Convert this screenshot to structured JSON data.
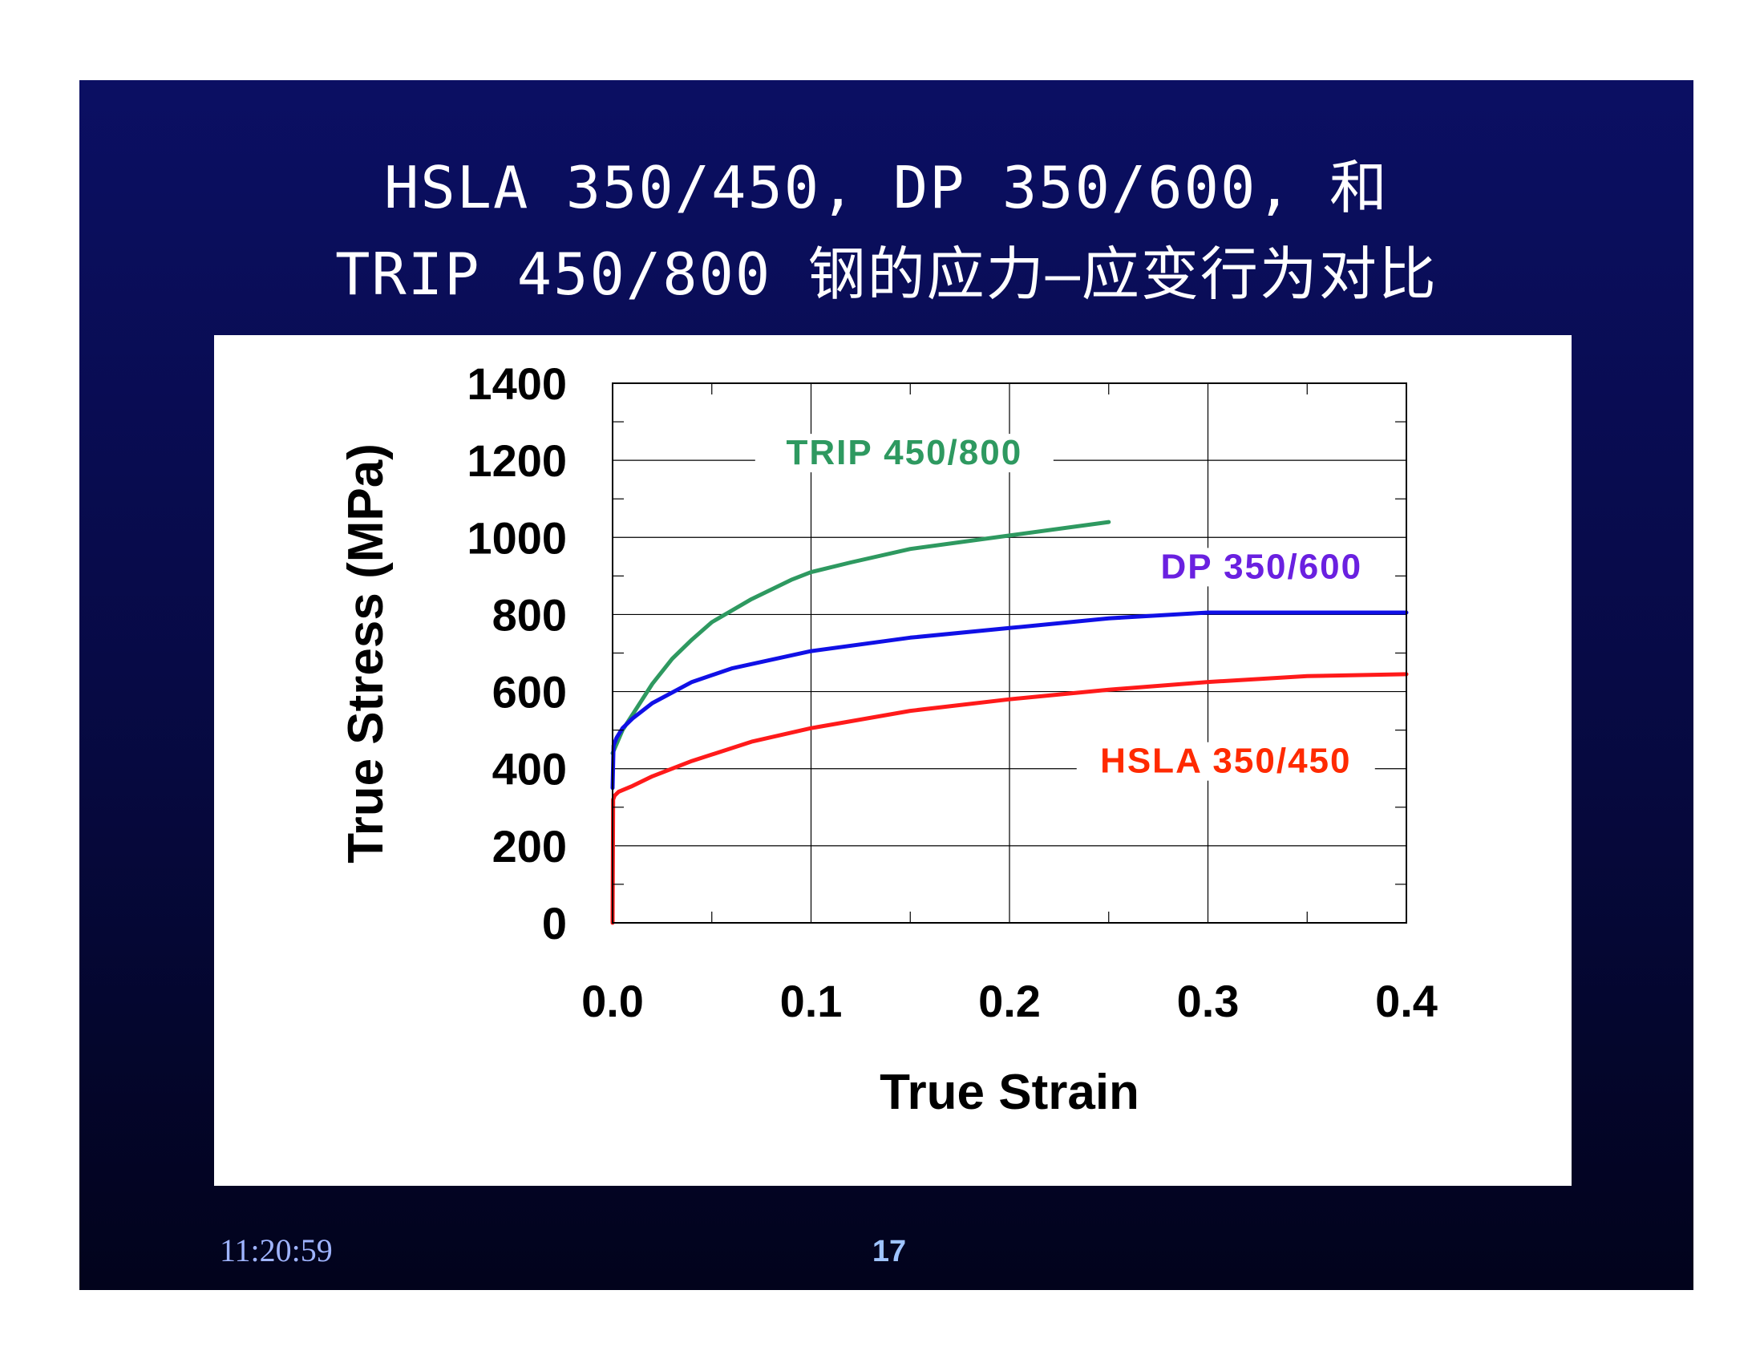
{
  "slide": {
    "title_line1": "HSLA 350/450, DP 350/600, 和",
    "title_line2": "TRIP 450/800 钢的应力—应变行为对比",
    "timestamp": "11:20:59",
    "page_number": "17",
    "background_color": "#070a45",
    "footer_color": "#9fb4ff"
  },
  "chart_data": {
    "type": "line",
    "title": "",
    "xlabel": "True Strain",
    "ylabel": "True Stress (MPa)",
    "xlim": [
      0,
      0.4
    ],
    "ylim": [
      0,
      1400
    ],
    "x_ticks": [
      0.0,
      0.1,
      0.2,
      0.3,
      0.4
    ],
    "x_tick_labels": [
      "0.0",
      "0.1",
      "0.2",
      "0.3",
      "0.4"
    ],
    "y_ticks": [
      0,
      200,
      400,
      600,
      800,
      1000,
      1200,
      1400
    ],
    "y_tick_labels": [
      "0",
      "200",
      "400",
      "600",
      "800",
      "1000",
      "1200",
      "1400"
    ],
    "grid": true,
    "legend": "inline labels",
    "series": [
      {
        "name": "TRIP 450/800",
        "color": "#2e9960",
        "label_color": "#2e9960",
        "x": [
          0.0,
          0.005,
          0.01,
          0.02,
          0.03,
          0.04,
          0.05,
          0.07,
          0.09,
          0.1,
          0.12,
          0.15,
          0.2,
          0.25
        ],
        "y": [
          440,
          500,
          540,
          620,
          685,
          735,
          780,
          840,
          890,
          910,
          935,
          970,
          1005,
          1040
        ]
      },
      {
        "name": "DP 350/600",
        "color": "#1010e6",
        "label_color": "#6a20e0",
        "x": [
          0.0,
          0.0005,
          0.002,
          0.005,
          0.01,
          0.02,
          0.04,
          0.06,
          0.1,
          0.15,
          0.2,
          0.25,
          0.3,
          0.35,
          0.4
        ],
        "y": [
          350,
          460,
          480,
          505,
          530,
          570,
          625,
          660,
          705,
          740,
          765,
          790,
          805,
          805,
          805
        ]
      },
      {
        "name": "HSLA 350/450",
        "color": "#ff1a1a",
        "label_color": "#ff2a00",
        "x": [
          0.0,
          0.0003,
          0.001,
          0.003,
          0.01,
          0.02,
          0.04,
          0.07,
          0.1,
          0.15,
          0.2,
          0.25,
          0.3,
          0.35,
          0.4
        ],
        "y": [
          0,
          320,
          330,
          340,
          355,
          380,
          420,
          470,
          505,
          550,
          580,
          605,
          625,
          640,
          645
        ]
      }
    ]
  }
}
